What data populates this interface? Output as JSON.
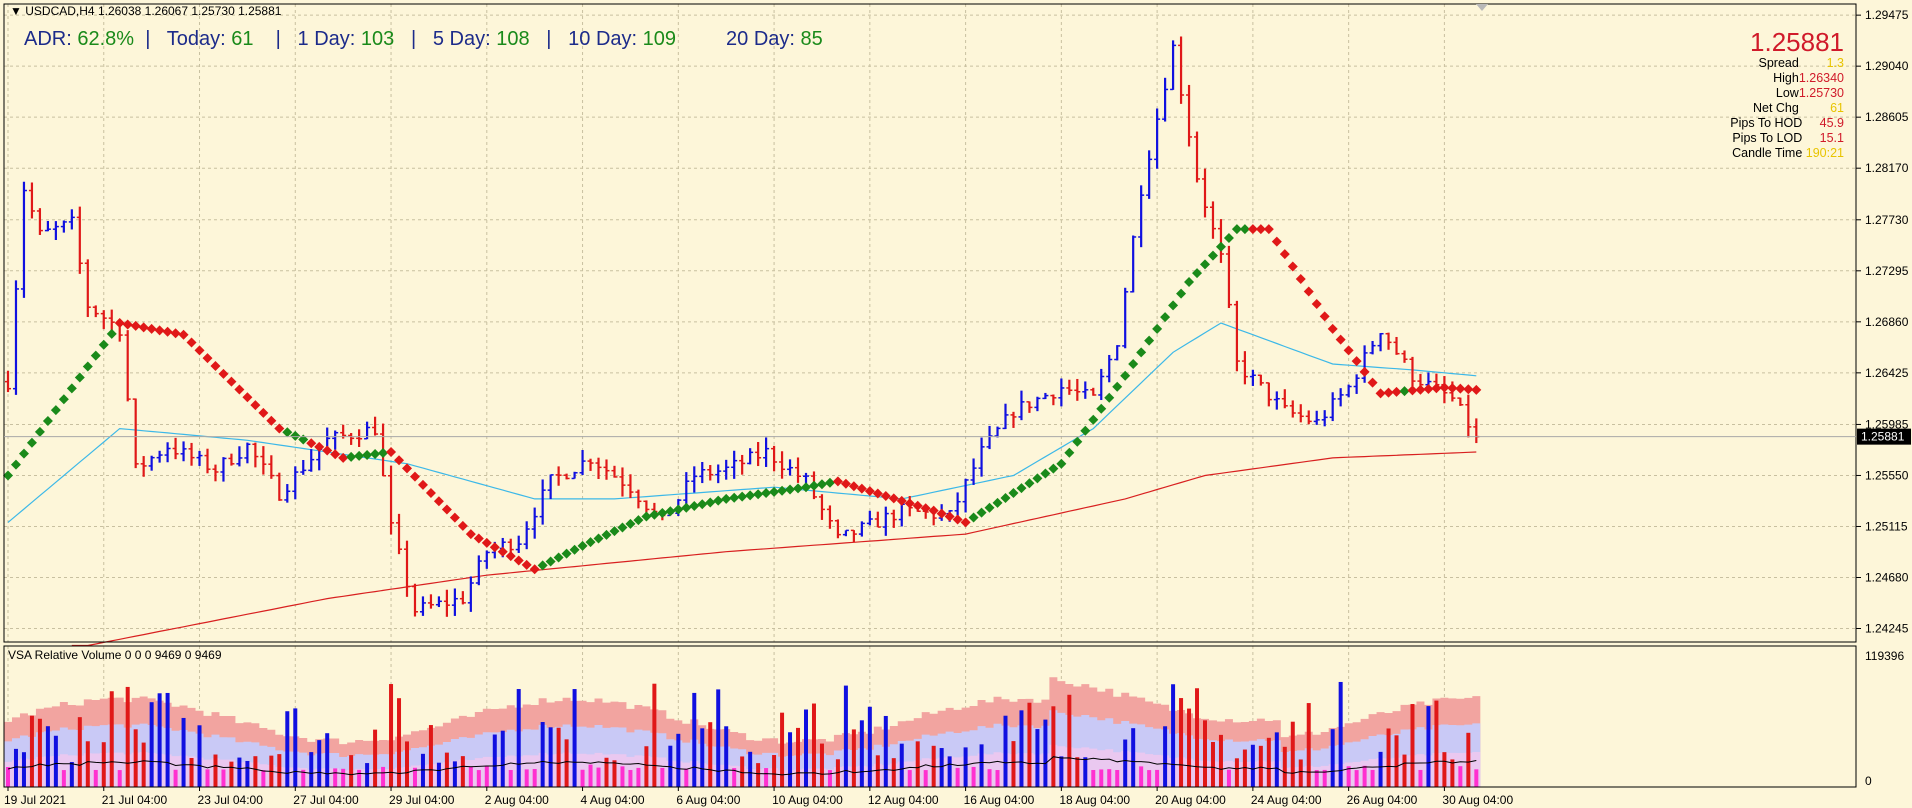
{
  "header": {
    "symbol_label": "USDCAD,H4",
    "ohlc": "1.26038 1.26067 1.25730 1.25881",
    "adr_label": "ADR:",
    "adr_value": "62.8%",
    "today_label": "Today:",
    "today_value": "61",
    "day1_label": "1 Day:",
    "day1_value": "103",
    "day5_label": "5 Day:",
    "day5_value": "108",
    "day10_label": "10 Day:",
    "day10_value": "109",
    "day20_label": "20 Day:",
    "day20_value": "85"
  },
  "info_panel": {
    "price": "1.25881",
    "spread_label": "Spread",
    "spread_value": "1.3",
    "high_label": "High",
    "high_value": "1.26340",
    "low_label": "Low",
    "low_value": "1.25730",
    "netchg_label": "Net Chg",
    "netchg_value": "61",
    "hod_label": "Pips To HOD",
    "hod_value": "45.9",
    "lod_label": "Pips To LOD",
    "lod_value": "15.1",
    "candle_label": "Candle Time",
    "candle_value": "190:21"
  },
  "volume_panel": {
    "title": "VSA Relative Volume 0 0 0 9469 0 9469",
    "max_label": "119396",
    "min_label": "0"
  },
  "colors": {
    "background": "#fdf6d9",
    "up_bar": "#1010e0",
    "down_bar": "#e01818",
    "ma_up": "#1a8a1a",
    "ma_down": "#e01818",
    "ma_fast": "#3cb8e8",
    "ma_slow": "#d82020",
    "grid": "#c8c0a0"
  },
  "chart_data": {
    "type": "line",
    "timeframe": "H4",
    "symbol": "USDCAD",
    "y_ticks": [
      1.29475,
      1.2904,
      1.28605,
      1.2817,
      1.2773,
      1.27295,
      1.2686,
      1.26425,
      1.25985,
      1.2555,
      1.25115,
      1.2468,
      1.24245
    ],
    "ylim": [
      1.2413,
      1.2957
    ],
    "current_price": 1.25881,
    "x_labels": [
      "19 Jul 2021",
      "21 Jul 04:00",
      "23 Jul 04:00",
      "27 Jul 04:00",
      "29 Jul 04:00",
      "2 Aug 04:00",
      "4 Aug 04:00",
      "6 Aug 04:00",
      "10 Aug 04:00",
      "12 Aug 04:00",
      "16 Aug 04:00",
      "18 Aug 04:00",
      "20 Aug 04:00",
      "24 Aug 04:00",
      "26 Aug 04:00",
      "30 Aug 04:00"
    ],
    "x_label_bar_index": [
      0,
      12,
      24,
      36,
      48,
      60,
      72,
      84,
      96,
      108,
      120,
      132,
      144,
      156,
      168,
      180
    ],
    "price_keyframes": [
      [
        0,
        1.2635
      ],
      [
        2,
        1.28
      ],
      [
        4,
        1.276
      ],
      [
        8,
        1.277
      ],
      [
        10,
        1.27
      ],
      [
        12,
        1.269
      ],
      [
        14,
        1.268
      ],
      [
        16,
        1.256
      ],
      [
        20,
        1.258
      ],
      [
        26,
        1.256
      ],
      [
        30,
        1.258
      ],
      [
        34,
        1.254
      ],
      [
        40,
        1.2585
      ],
      [
        46,
        1.2595
      ],
      [
        48,
        1.251
      ],
      [
        51,
        1.244
      ],
      [
        57,
        1.245
      ],
      [
        60,
        1.249
      ],
      [
        64,
        1.25
      ],
      [
        68,
        1.255
      ],
      [
        73,
        1.257
      ],
      [
        78,
        1.2545
      ],
      [
        82,
        1.2515
      ],
      [
        86,
        1.2555
      ],
      [
        90,
        1.256
      ],
      [
        95,
        1.2575
      ],
      [
        100,
        1.255
      ],
      [
        104,
        1.25
      ],
      [
        112,
        1.2525
      ],
      [
        118,
        1.252
      ],
      [
        122,
        1.2575
      ],
      [
        126,
        1.261
      ],
      [
        132,
        1.263
      ],
      [
        136,
        1.262
      ],
      [
        139,
        1.267
      ],
      [
        142,
        1.28
      ],
      [
        146,
        1.292
      ],
      [
        149,
        1.281
      ],
      [
        152,
        1.274
      ],
      [
        154,
        1.265
      ],
      [
        160,
        1.261
      ],
      [
        164,
        1.26
      ],
      [
        168,
        1.263
      ],
      [
        172,
        1.268
      ],
      [
        176,
        1.264
      ],
      [
        181,
        1.262
      ],
      [
        184,
        1.25881
      ]
    ],
    "ma_fast_keyframes": [
      [
        0,
        1.2515
      ],
      [
        14,
        1.2595
      ],
      [
        30,
        1.2585
      ],
      [
        50,
        1.2565
      ],
      [
        66,
        1.2535
      ],
      [
        76,
        1.2535
      ],
      [
        96,
        1.2545
      ],
      [
        112,
        1.2535
      ],
      [
        126,
        1.2555
      ],
      [
        136,
        1.2595
      ],
      [
        146,
        1.266
      ],
      [
        152,
        1.2685
      ],
      [
        166,
        1.265
      ],
      [
        176,
        1.2645
      ],
      [
        184,
        1.264
      ]
    ],
    "ma_slow_keyframes": [
      [
        10,
        1.241
      ],
      [
        40,
        1.245
      ],
      [
        60,
        1.247
      ],
      [
        90,
        1.249
      ],
      [
        120,
        1.2505
      ],
      [
        140,
        1.2535
      ],
      [
        150,
        1.2555
      ],
      [
        166,
        1.257
      ],
      [
        184,
        1.2575
      ]
    ],
    "trend_ma_keyframes": [
      [
        0,
        1.2555
      ],
      [
        14,
        1.2685
      ],
      [
        22,
        1.2675
      ],
      [
        34,
        1.2595
      ],
      [
        42,
        1.257
      ],
      [
        48,
        1.2575
      ],
      [
        58,
        1.2505
      ],
      [
        66,
        1.2475
      ],
      [
        72,
        1.2495
      ],
      [
        80,
        1.252
      ],
      [
        90,
        1.2535
      ],
      [
        100,
        1.2545
      ],
      [
        104,
        1.255
      ],
      [
        116,
        1.2525
      ],
      [
        120,
        1.2515
      ],
      [
        132,
        1.2565
      ],
      [
        140,
        1.264
      ],
      [
        148,
        1.272
      ],
      [
        154,
        1.2765
      ],
      [
        158,
        1.2765
      ],
      [
        166,
        1.268
      ],
      [
        172,
        1.2625
      ],
      [
        180,
        1.263
      ],
      [
        184,
        1.2628
      ]
    ],
    "trend_down_segments": [
      [
        14,
        34
      ],
      [
        38,
        42
      ],
      [
        48,
        66
      ],
      [
        104,
        120
      ],
      [
        156,
        174
      ],
      [
        176,
        184
      ]
    ],
    "volume_max": 119396
  }
}
